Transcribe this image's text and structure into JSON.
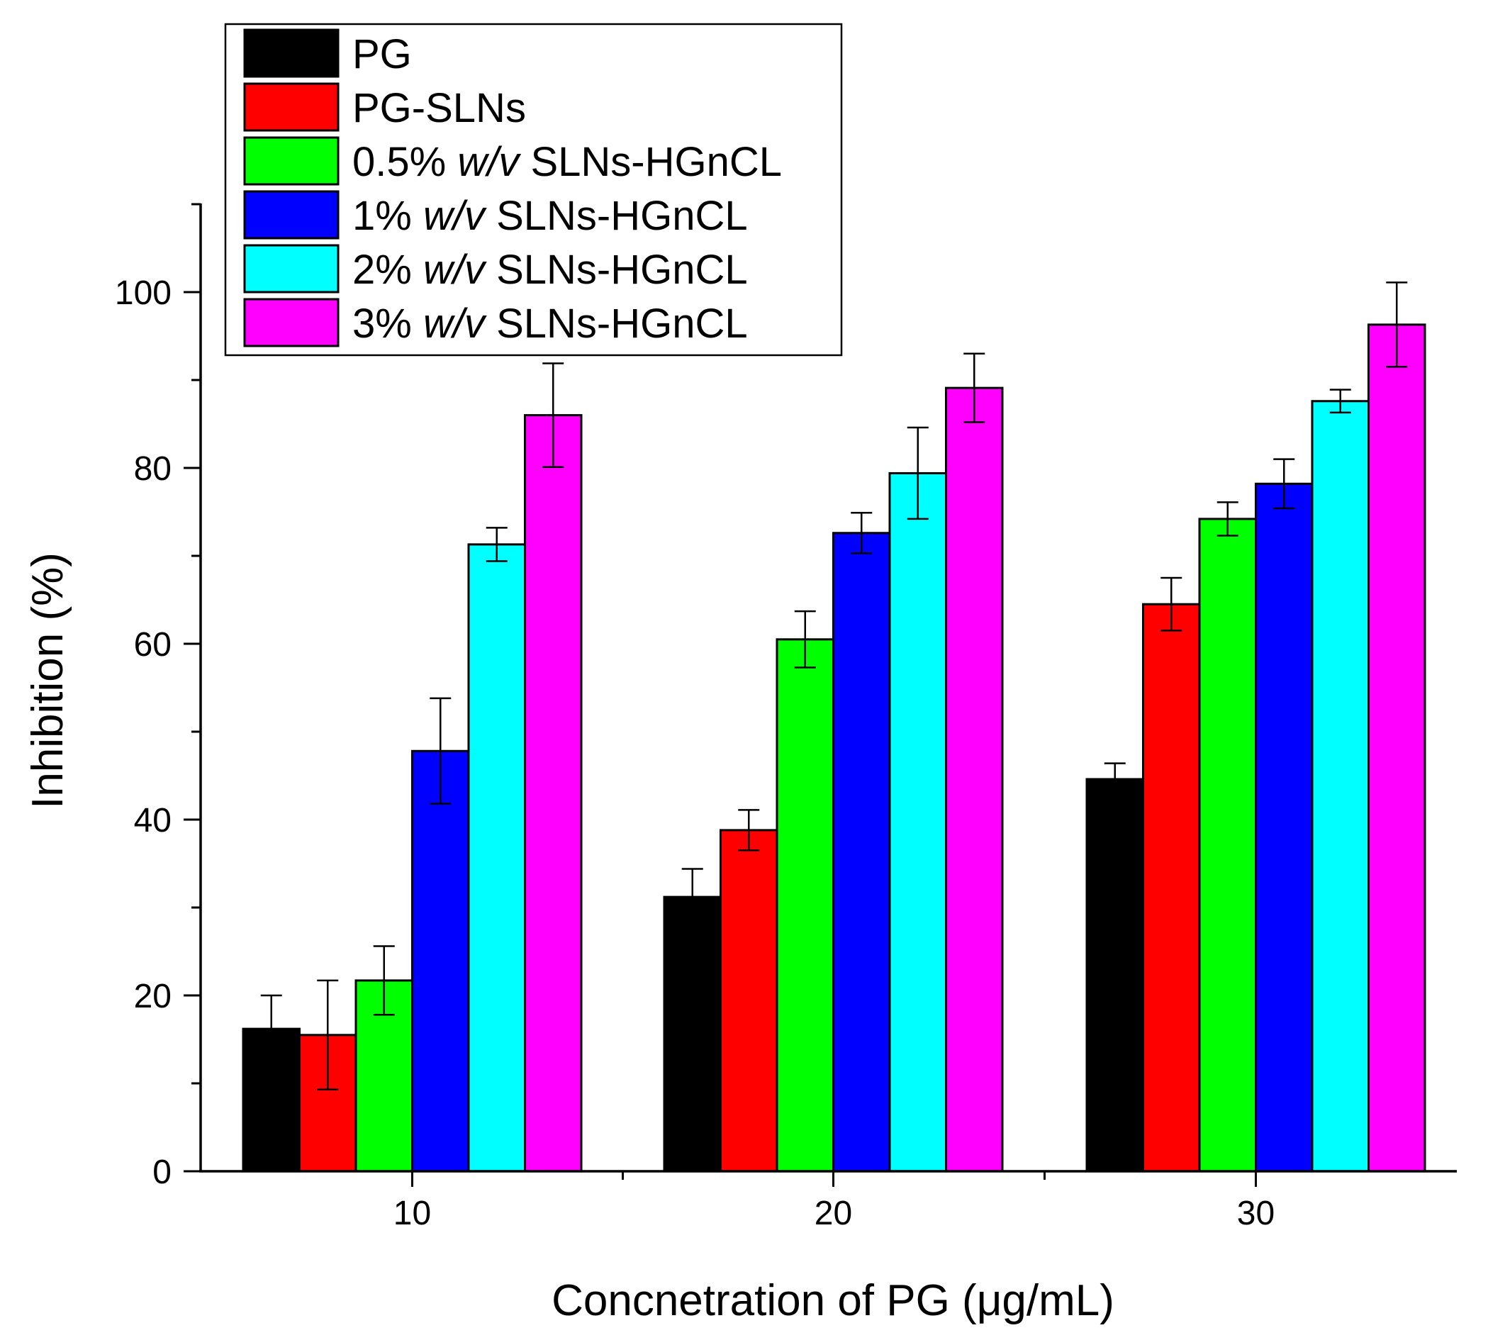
{
  "chart_data": {
    "type": "bar",
    "title": "",
    "xlabel": "Concnetration of PG (μg/mL)",
    "ylabel": "Inhibition (%)",
    "ylim": [
      0,
      110
    ],
    "yticks": [
      "0",
      "20",
      "40",
      "60",
      "80",
      "100"
    ],
    "categories": [
      "10",
      "20",
      "30"
    ],
    "legend_position": "top-left",
    "grid": false,
    "series": [
      {
        "name": "PG",
        "prefix": "",
        "italic": "",
        "suffix": "",
        "color": "#000000",
        "values": [
          16.2,
          31.2,
          44.6
        ],
        "errors": [
          3.8,
          3.2,
          1.8
        ]
      },
      {
        "name": "PG-SLNs",
        "prefix": "PG-SLNs",
        "italic": "",
        "suffix": "",
        "color": "#ff0000",
        "values": [
          15.5,
          38.8,
          64.5
        ],
        "errors": [
          6.2,
          2.3,
          3.0
        ]
      },
      {
        "name": "0.5% w/v SLNs-HGnCL",
        "prefix": "0.5% ",
        "italic": "w/v",
        "suffix": " SLNs-HGnCL",
        "color": "#00ff00",
        "values": [
          21.7,
          60.5,
          74.2
        ],
        "errors": [
          3.9,
          3.2,
          1.9
        ]
      },
      {
        "name": "1% w/v SLNs-HGnCL",
        "prefix": "1% ",
        "italic": "w/v",
        "suffix": " SLNs-HGnCL",
        "color": "#0000ff",
        "values": [
          47.8,
          72.6,
          78.2
        ],
        "errors": [
          6.0,
          2.3,
          2.8
        ]
      },
      {
        "name": "2% w/v SLNs-HGnCL",
        "prefix": "2% ",
        "italic": "w/v",
        "suffix": " SLNs-HGnCL",
        "color": "#00ffff",
        "values": [
          71.3,
          79.4,
          87.6
        ],
        "errors": [
          1.9,
          5.2,
          1.3
        ]
      },
      {
        "name": "3% w/v SLNs-HGnCL",
        "prefix": "3% ",
        "italic": "w/v",
        "suffix": " SLNs-HGnCL",
        "color": "#ff00ff",
        "values": [
          86.0,
          89.1,
          96.3
        ],
        "errors": [
          5.9,
          3.9,
          4.8
        ]
      }
    ]
  }
}
